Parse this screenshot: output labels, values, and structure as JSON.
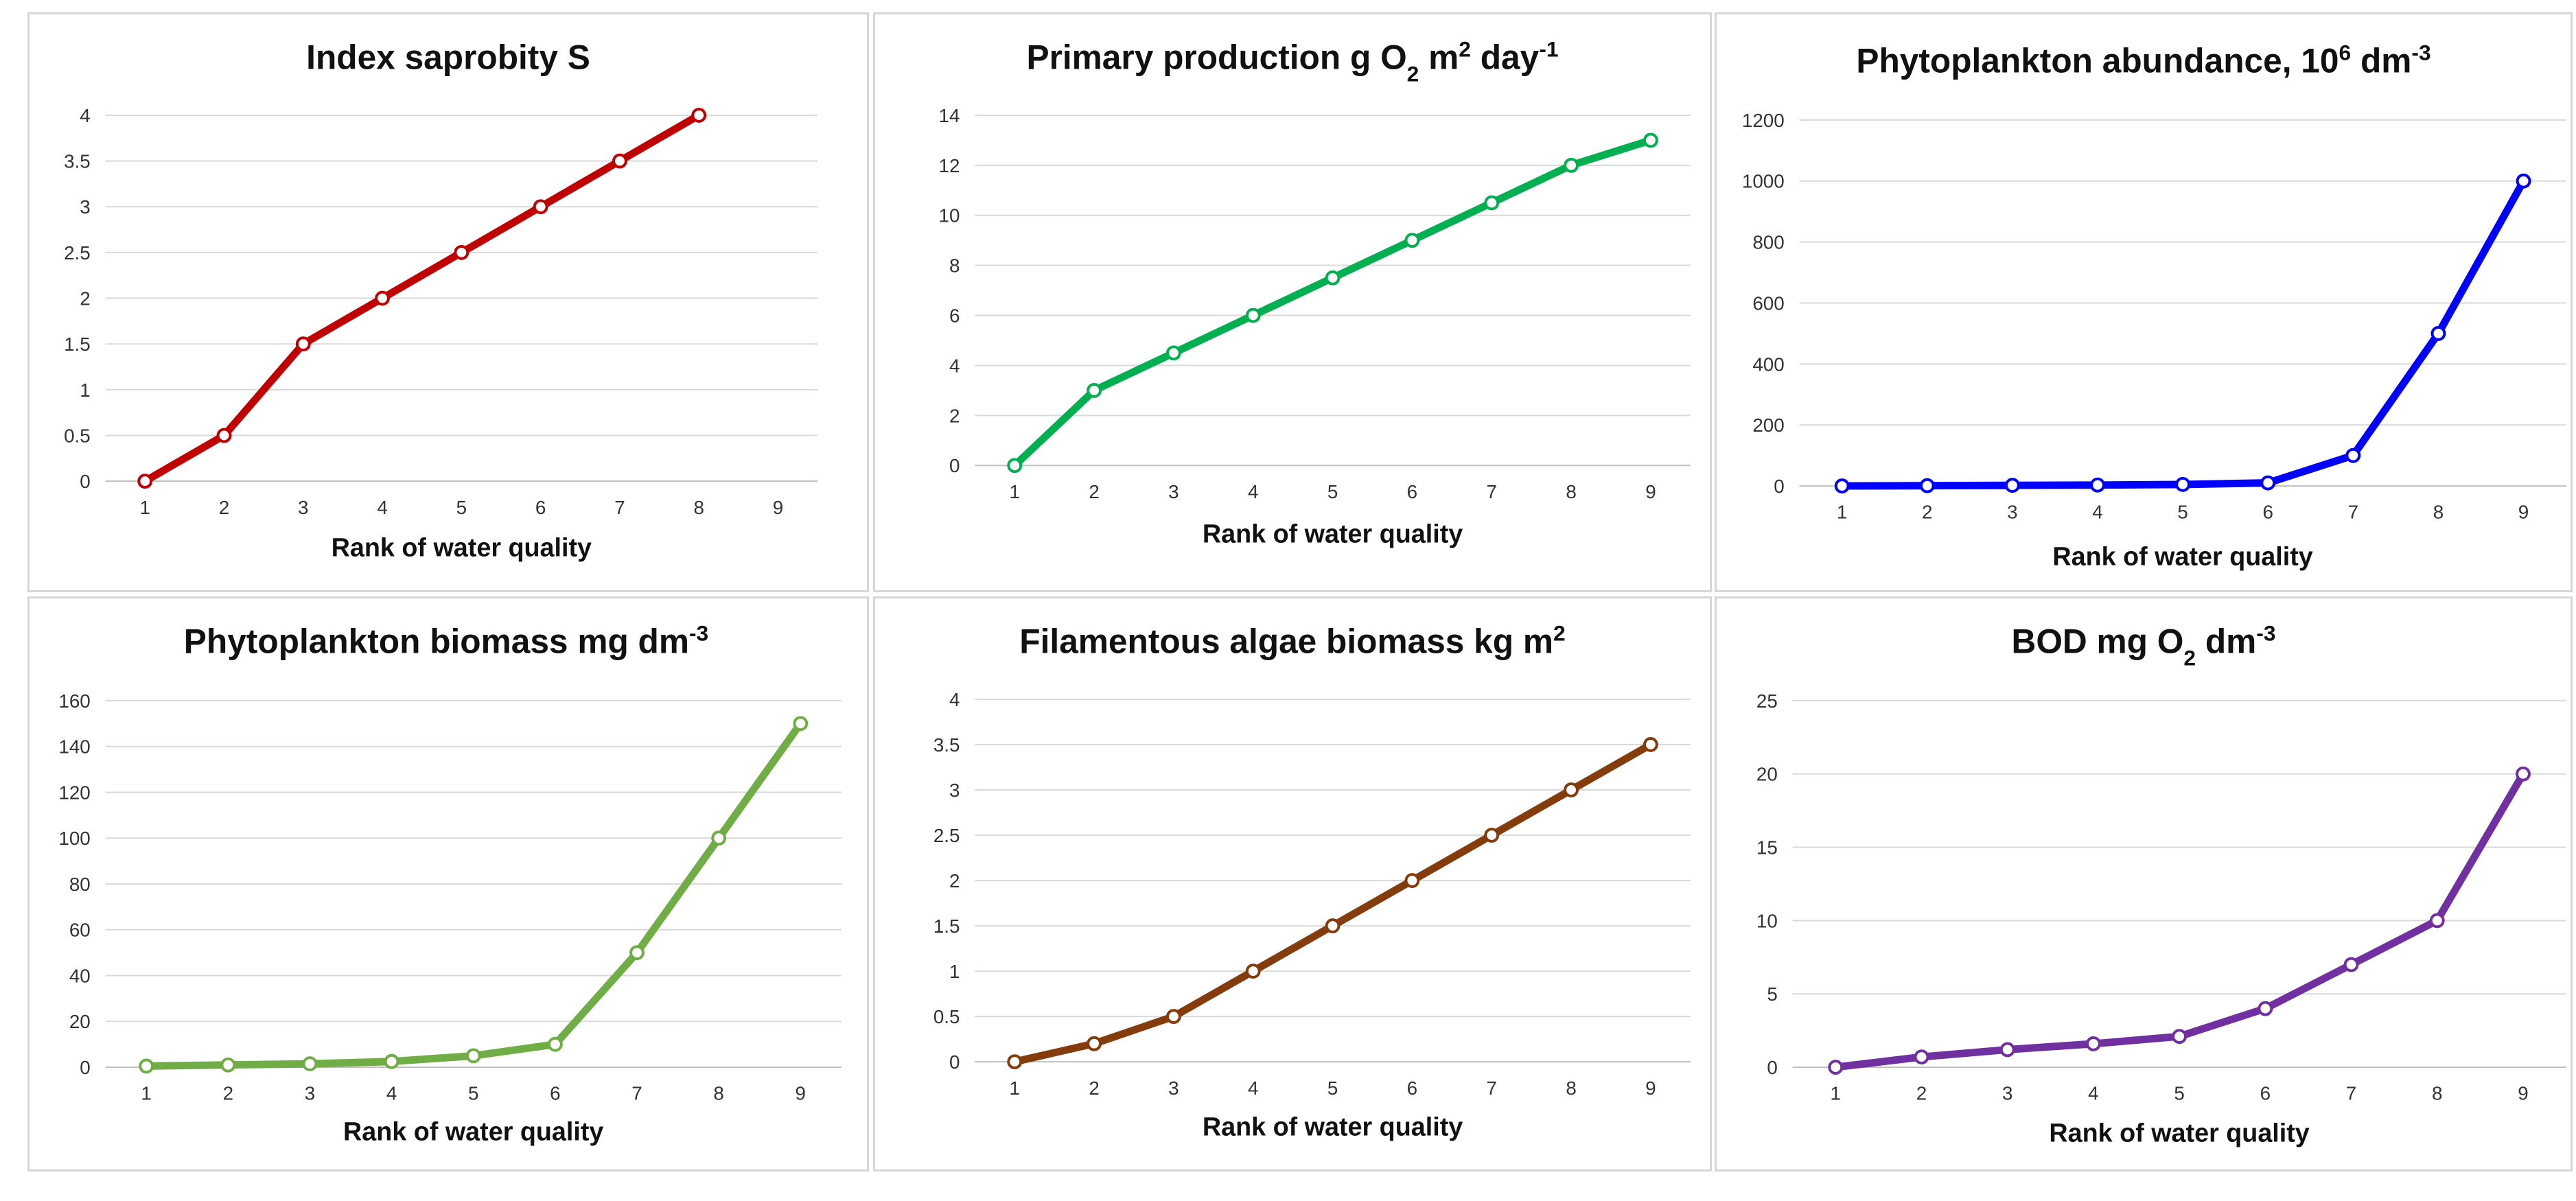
{
  "chart_data": [
    {
      "type": "line",
      "title": "Index saprobity S",
      "title_parts": [
        {
          "text": "Index saprobity S"
        }
      ],
      "xlabel": "Rank of water quality",
      "categories": [
        "1",
        "2",
        "3",
        "4",
        "5",
        "6",
        "7",
        "8",
        "9"
      ],
      "yticks": [
        "0",
        "0.5",
        "1",
        "1.5",
        "2",
        "2.5",
        "3",
        "3.5",
        "4"
      ],
      "ylim": [
        0,
        4
      ],
      "color": "#C00000",
      "series": [
        {
          "name": "Index saprobity S",
          "values": [
            0,
            0.5,
            1.5,
            2,
            2.5,
            3,
            3.5,
            4,
            null
          ]
        }
      ]
    },
    {
      "type": "line",
      "title": "Primary production g O2 m2 day-1",
      "title_parts": [
        {
          "text": "Primary production g O"
        },
        {
          "text": "2",
          "sub": true
        },
        {
          "text": " m"
        },
        {
          "text": "2",
          "sup": true
        },
        {
          "text": " day"
        },
        {
          "text": "-1",
          "sup": true
        }
      ],
      "xlabel": "Rank of water quality",
      "categories": [
        "1",
        "2",
        "3",
        "4",
        "5",
        "6",
        "7",
        "8",
        "9"
      ],
      "yticks": [
        "0",
        "2",
        "4",
        "6",
        "8",
        "10",
        "12",
        "14"
      ],
      "ylim": [
        0,
        14
      ],
      "color": "#00B050",
      "series": [
        {
          "name": "Primary production",
          "values": [
            0,
            3,
            4.5,
            6,
            7.5,
            9,
            10.5,
            12,
            13
          ]
        }
      ]
    },
    {
      "type": "line",
      "title": "Phytoplankton abundance, 106 dm-3",
      "title_parts": [
        {
          "text": "Phytoplankton abundance, 10"
        },
        {
          "text": "6",
          "sup": true
        },
        {
          "text": " dm"
        },
        {
          "text": "-3",
          "sup": true
        }
      ],
      "xlabel": "Rank of water quality",
      "categories": [
        "1",
        "2",
        "3",
        "4",
        "5",
        "6",
        "7",
        "8",
        "9"
      ],
      "yticks": [
        "0",
        "200",
        "400",
        "600",
        "800",
        "1000",
        "1200"
      ],
      "ylim": [
        0,
        1200
      ],
      "color": "#0000FF",
      "series": [
        {
          "name": "Phytoplankton abundance",
          "values": [
            0,
            1,
            2,
            3,
            5,
            10,
            100,
            500,
            1000
          ]
        }
      ]
    },
    {
      "type": "line",
      "title": "Phytoplankton biomass mg dm-3",
      "title_parts": [
        {
          "text": "Phytoplankton biomass mg dm"
        },
        {
          "text": "-3",
          "sup": true
        }
      ],
      "xlabel": "Rank of water quality",
      "categories": [
        "1",
        "2",
        "3",
        "4",
        "5",
        "6",
        "7",
        "8",
        "9"
      ],
      "yticks": [
        "0",
        "20",
        "40",
        "60",
        "80",
        "100",
        "120",
        "140",
        "160"
      ],
      "ylim": [
        0,
        160
      ],
      "color": "#70AD47",
      "series": [
        {
          "name": "Phytoplankton biomass",
          "values": [
            0.5,
            1,
            1.5,
            2.5,
            5,
            10,
            50,
            100,
            150
          ]
        }
      ]
    },
    {
      "type": "line",
      "title": "Filamentous algae biomass kg m2",
      "title_parts": [
        {
          "text": "Filamentous algae biomass kg m"
        },
        {
          "text": "2",
          "sup": true
        }
      ],
      "xlabel": "Rank of water quality",
      "categories": [
        "1",
        "2",
        "3",
        "4",
        "5",
        "6",
        "7",
        "8",
        "9"
      ],
      "yticks": [
        "0",
        "0.5",
        "1",
        "1.5",
        "2",
        "2.5",
        "3",
        "3.5",
        "4"
      ],
      "ylim": [
        0,
        4
      ],
      "color": "#843C0C",
      "series": [
        {
          "name": "Filamentous algae biomass",
          "values": [
            0,
            0.2,
            0.5,
            1,
            1.5,
            2,
            2.5,
            3,
            3.5
          ]
        }
      ]
    },
    {
      "type": "line",
      "title": "BOD mg O2 dm-3",
      "title_parts": [
        {
          "text": "BOD mg O"
        },
        {
          "text": "2",
          "sub": true
        },
        {
          "text": " dm"
        },
        {
          "text": "-3",
          "sup": true
        }
      ],
      "xlabel": "Rank of water quality",
      "categories": [
        "1",
        "2",
        "3",
        "4",
        "5",
        "6",
        "7",
        "8",
        "9"
      ],
      "yticks": [
        "0",
        "5",
        "10",
        "15",
        "20",
        "25"
      ],
      "ylim": [
        0,
        25
      ],
      "color": "#7030A0",
      "series": [
        {
          "name": "BOD",
          "values": [
            0,
            0.7,
            1.2,
            1.6,
            2.1,
            4,
            7,
            10,
            20
          ]
        }
      ]
    }
  ]
}
